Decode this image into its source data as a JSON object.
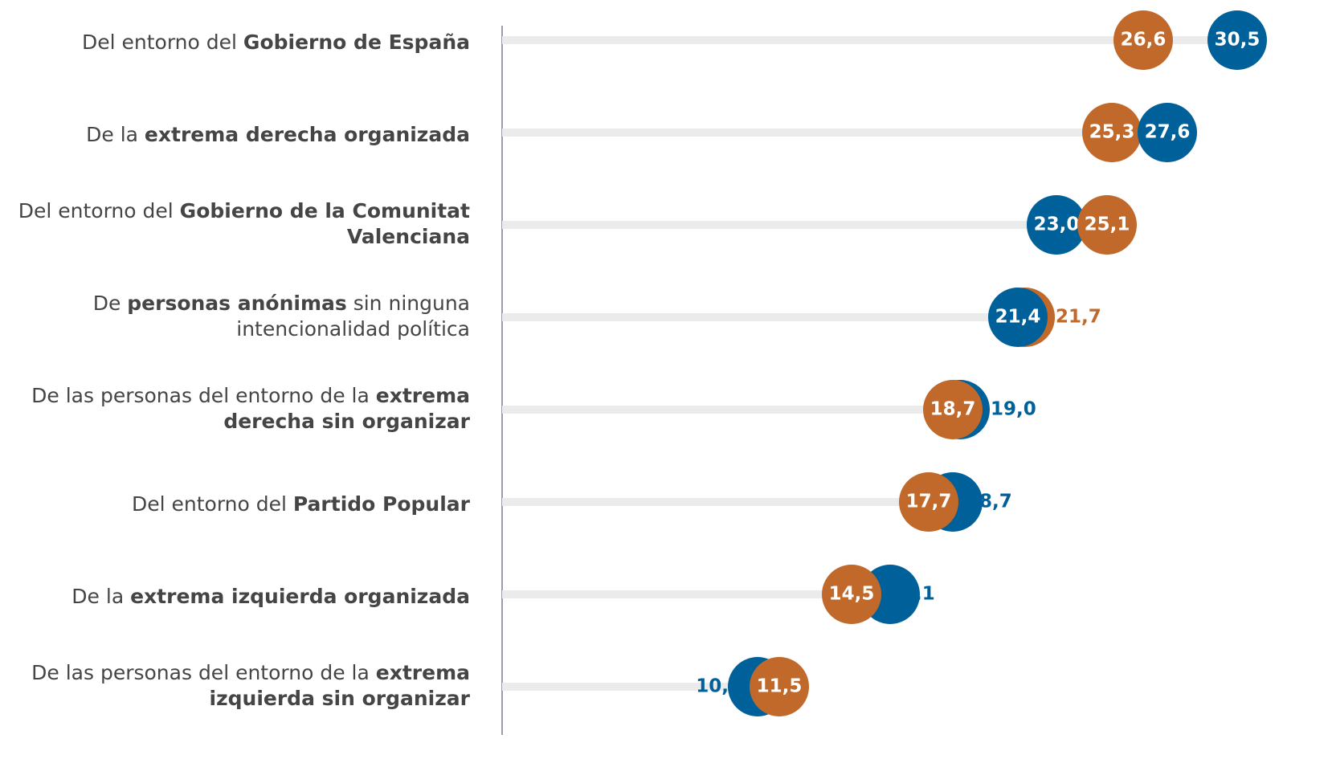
{
  "chart_data": {
    "type": "dot",
    "categories": [
      [
        [
          {
            "text": "Del entorno del ",
            "bold": false
          },
          {
            "text": "Gobierno de España",
            "bold": true
          }
        ]
      ],
      [
        [
          {
            "text": "De la ",
            "bold": false
          },
          {
            "text": "extrema derecha organizada",
            "bold": true
          }
        ]
      ],
      [
        [
          {
            "text": "Del entorno del ",
            "bold": false
          },
          {
            "text": "Gobierno de la Comunitat",
            "bold": true
          }
        ],
        [
          {
            "text": "Valenciana",
            "bold": true
          }
        ]
      ],
      [
        [
          {
            "text": "De ",
            "bold": false
          },
          {
            "text": "personas anónimas",
            "bold": true
          },
          {
            "text": " sin ninguna",
            "bold": false
          }
        ],
        [
          {
            "text": "intencionalidad política",
            "bold": false
          }
        ]
      ],
      [
        [
          {
            "text": "De las personas del entorno de la ",
            "bold": false
          },
          {
            "text": "extrema",
            "bold": true
          }
        ],
        [
          {
            "text": "derecha sin organizar",
            "bold": true
          }
        ]
      ],
      [
        [
          {
            "text": "Del entorno del ",
            "bold": false
          },
          {
            "text": "Partido Popular",
            "bold": true
          }
        ]
      ],
      [
        [
          {
            "text": "De la ",
            "bold": false
          },
          {
            "text": "extrema izquierda organizada",
            "bold": true
          }
        ]
      ],
      [
        [
          {
            "text": "De las personas del entorno de la ",
            "bold": false
          },
          {
            "text": "extrema",
            "bold": true
          }
        ],
        [
          {
            "text": "izquierda sin organizar",
            "bold": true
          }
        ]
      ]
    ],
    "series": [
      {
        "color": "#00609a",
        "values": [
          30.5,
          27.6,
          23.0,
          21.4,
          19.0,
          18.7,
          16.1,
          10.6
        ],
        "value_labels": [
          "30,5",
          "27,6",
          "23,0",
          "21,4",
          "19,0",
          "18,7",
          "16,1",
          "10,6"
        ]
      },
      {
        "color": "#c0692a",
        "values": [
          26.6,
          25.3,
          25.1,
          21.7,
          18.7,
          17.7,
          14.5,
          11.5
        ],
        "value_labels": [
          "26,6",
          "25,3",
          "25,1",
          "21,7",
          "18,7",
          "17,7",
          "14,5",
          "11,5"
        ]
      }
    ],
    "xlim": [
      0,
      32.5
    ]
  }
}
